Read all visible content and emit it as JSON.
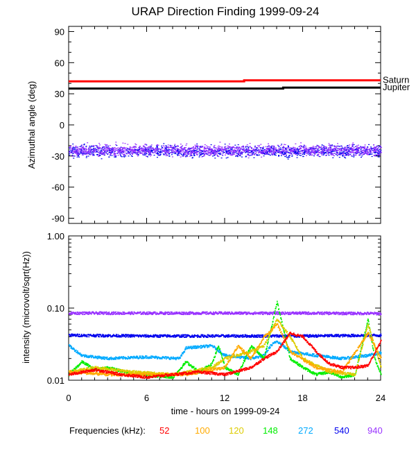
{
  "chart_data": [
    {
      "type": "scatter",
      "title": "URAP Direction Finding  1999-09-24",
      "ylabel": "Azimuthal angle (deg)",
      "xlim": [
        0,
        24
      ],
      "ylim": [
        -95,
        95
      ],
      "y_ticks": [
        90,
        60,
        30,
        0,
        -30,
        -60,
        -90
      ],
      "y_tick_labels": [
        "90",
        "60",
        "30",
        "0",
        "-30",
        "-60",
        "-90"
      ],
      "grid": false,
      "reference_lines": [
        {
          "name": "Saturn",
          "color": "#ff0000",
          "x": [
            0,
            13.5,
            13.5,
            24
          ],
          "y": [
            42,
            42,
            43,
            43
          ]
        },
        {
          "name": "Jupiter",
          "color": "#000000",
          "x": [
            0,
            16.5,
            16.5,
            24
          ],
          "y": [
            35,
            35,
            36,
            36
          ]
        }
      ],
      "scatter_series": [
        {
          "color": "#0000ee",
          "y_center": -25,
          "y_spread": 8
        },
        {
          "color": "#9933ff",
          "y_center": -24,
          "y_spread": 8
        }
      ]
    },
    {
      "type": "line",
      "ylabel": "intensity (microvolt/sqrt(Hz))",
      "xlabel": "time - hours on 1999-09-24",
      "xlim": [
        0,
        24
      ],
      "x_ticks": [
        0,
        6,
        12,
        18,
        24
      ],
      "x_tick_labels": [
        "0",
        "6",
        "12",
        "18",
        "24"
      ],
      "y_scale": "log",
      "ylim": [
        0.01,
        1.0
      ],
      "y_ticks": [
        1.0,
        0.1,
        0.01
      ],
      "y_tick_labels": [
        "1.00",
        "0.10",
        "0.01"
      ],
      "series": [
        {
          "freq": "940",
          "color": "#9933ff",
          "x": [
            0,
            6,
            12,
            18,
            24
          ],
          "y": [
            0.085,
            0.085,
            0.085,
            0.085,
            0.084
          ]
        },
        {
          "freq": "540",
          "color": "#0000ee",
          "x": [
            0,
            6,
            12,
            18,
            24
          ],
          "y": [
            0.042,
            0.041,
            0.041,
            0.041,
            0.042
          ]
        },
        {
          "freq": "272",
          "color": "#00aaff",
          "x": [
            0,
            1,
            3,
            6,
            8.5,
            9,
            11,
            12,
            14,
            15,
            15.5,
            16,
            17,
            19,
            21,
            23,
            24
          ],
          "y": [
            0.03,
            0.022,
            0.02,
            0.021,
            0.02,
            0.028,
            0.03,
            0.022,
            0.02,
            0.022,
            0.03,
            0.035,
            0.025,
            0.022,
            0.02,
            0.022,
            0.024
          ]
        },
        {
          "freq": "148",
          "color": "#00ee00",
          "x": [
            0,
            1,
            2,
            3,
            5,
            8,
            9,
            10,
            11,
            11.5,
            12,
            13,
            14,
            15,
            16,
            16.5,
            17,
            18,
            19,
            20,
            21,
            22,
            23,
            23.5,
            24
          ],
          "y": [
            0.012,
            0.018,
            0.014,
            0.015,
            0.012,
            0.011,
            0.018,
            0.013,
            0.017,
            0.03,
            0.015,
            0.012,
            0.03,
            0.02,
            0.12,
            0.05,
            0.02,
            0.015,
            0.012,
            0.013,
            0.011,
            0.012,
            0.07,
            0.02,
            0.012
          ]
        },
        {
          "freq": "120",
          "color": "#ddcc00",
          "x": [
            0,
            2,
            5,
            8,
            11,
            12,
            14,
            15,
            16,
            17,
            18,
            20,
            22,
            23,
            24
          ],
          "y": [
            0.013,
            0.015,
            0.013,
            0.012,
            0.015,
            0.02,
            0.025,
            0.03,
            0.07,
            0.04,
            0.02,
            0.013,
            0.012,
            0.06,
            0.015
          ]
        },
        {
          "freq": "100",
          "color": "#ffaa00",
          "x": [
            0,
            3,
            6,
            9,
            12,
            13,
            14,
            15,
            16,
            17,
            19,
            21,
            23,
            24
          ],
          "y": [
            0.013,
            0.012,
            0.012,
            0.012,
            0.015,
            0.03,
            0.02,
            0.04,
            0.06,
            0.025,
            0.015,
            0.013,
            0.045,
            0.02
          ]
        },
        {
          "freq": "52",
          "color": "#ff0000",
          "x": [
            0,
            2,
            4,
            6,
            8,
            10,
            12,
            14,
            15,
            16,
            17,
            18,
            19,
            20,
            21,
            22,
            23,
            24
          ],
          "y": [
            0.012,
            0.014,
            0.012,
            0.011,
            0.012,
            0.013,
            0.012,
            0.015,
            0.02,
            0.025,
            0.045,
            0.04,
            0.025,
            0.017,
            0.015,
            0.015,
            0.016,
            0.035
          ]
        }
      ]
    }
  ],
  "legend": {
    "label": "Frequencies (kHz):",
    "items": [
      {
        "text": "52",
        "color": "#ff0000"
      },
      {
        "text": "100",
        "color": "#ffaa00"
      },
      {
        "text": "120",
        "color": "#ddcc00"
      },
      {
        "text": "148",
        "color": "#00ee00"
      },
      {
        "text": "272",
        "color": "#00aaff"
      },
      {
        "text": "540",
        "color": "#0000ee"
      },
      {
        "text": "940",
        "color": "#9933ff"
      }
    ]
  }
}
